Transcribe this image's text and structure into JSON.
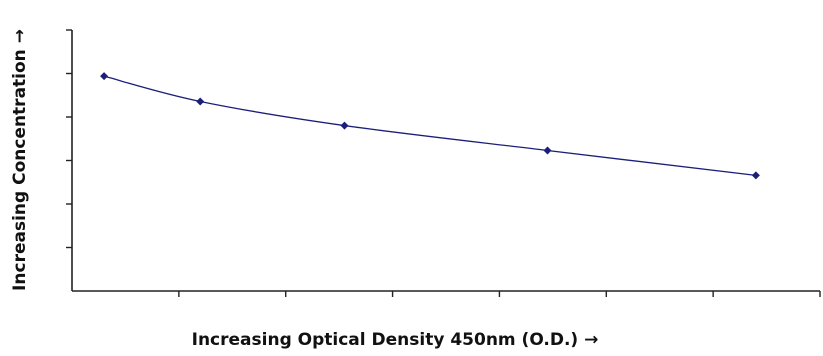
{
  "chart_data": {
    "type": "line",
    "title": "",
    "xlabel": "Increasing Optical Density 450nm (O.D.) →",
    "ylabel": "Increasing Concentration →",
    "x": [
      0.3,
      1.2,
      2.55,
      4.45,
      6.4
    ],
    "series": [
      {
        "values": [
          5.35,
          4.72,
          4.12,
          3.5,
          2.88
        ],
        "color": "#1b1f7a",
        "marker": "diamond"
      }
    ],
    "xlim": [
      0,
      7
    ],
    "ylim": [
      0,
      6.5
    ],
    "x_ticks": 7,
    "y_ticks": 6,
    "tick_labels_shown": false,
    "grid": false,
    "legend": "none"
  }
}
